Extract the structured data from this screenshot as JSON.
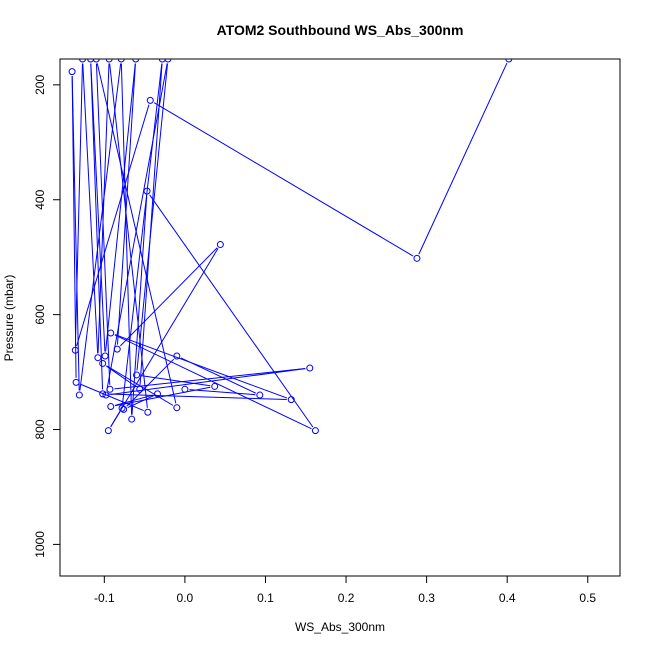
{
  "chart_data": {
    "type": "line",
    "title": "ATOM2 Southbound WS_Abs_300nm",
    "xlabel": "WS_Abs_300nm",
    "ylabel": "Pressure (mbar)",
    "xlim": [
      -0.155,
      0.54
    ],
    "ylim": [
      1055,
      155
    ],
    "y_reversed": true,
    "xticks": [
      "-0.1",
      "0.0",
      "0.1",
      "0.2",
      "0.3",
      "0.4",
      "0.5"
    ],
    "yticks": [
      "200",
      "400",
      "600",
      "800",
      "1000"
    ],
    "grid": false,
    "legend": "none",
    "series": [
      {
        "color": "#0000ff",
        "marker": "open-circle",
        "points": [
          {
            "x": 0.402,
            "y": 155
          },
          {
            "x": 0.288,
            "y": 502
          },
          {
            "x": -0.043,
            "y": 227
          },
          {
            "x": -0.136,
            "y": 662
          },
          {
            "x": -0.127,
            "y": 155
          },
          {
            "x": -0.108,
            "y": 675
          },
          {
            "x": -0.094,
            "y": 155
          },
          {
            "x": -0.046,
            "y": 770
          },
          {
            "x": -0.135,
            "y": 718
          },
          {
            "x": -0.14,
            "y": 177
          },
          {
            "x": -0.131,
            "y": 740
          },
          {
            "x": -0.079,
            "y": 155
          },
          {
            "x": -0.066,
            "y": 782
          },
          {
            "x": -0.047,
            "y": 385
          },
          {
            "x": 0.162,
            "y": 802
          },
          {
            "x": -0.092,
            "y": 632
          },
          {
            "x": 0.132,
            "y": 748
          },
          {
            "x": -0.102,
            "y": 738
          },
          {
            "x": -0.117,
            "y": 155
          },
          {
            "x": -0.099,
            "y": 672
          },
          {
            "x": -0.061,
            "y": 155
          },
          {
            "x": -0.084,
            "y": 660
          },
          {
            "x": 0.044,
            "y": 478
          },
          {
            "x": -0.095,
            "y": 802
          },
          {
            "x": -0.078,
            "y": 763
          },
          {
            "x": -0.028,
            "y": 155
          },
          {
            "x": -0.056,
            "y": 730
          },
          {
            "x": -0.102,
            "y": 685
          },
          {
            "x": -0.01,
            "y": 762
          },
          {
            "x": -0.11,
            "y": 155
          },
          {
            "x": -0.093,
            "y": 730
          },
          {
            "x": 0.155,
            "y": 693
          },
          {
            "x": -0.098,
            "y": 740
          },
          {
            "x": -0.021,
            "y": 155
          },
          {
            "x": -0.06,
            "y": 705
          },
          {
            "x": 0.037,
            "y": 725
          },
          {
            "x": -0.092,
            "y": 760
          },
          {
            "x": -0.034,
            "y": 738
          },
          {
            "x": -0.076,
            "y": 765
          },
          {
            "x": -0.01,
            "y": 672
          },
          {
            "x": 0.093,
            "y": 740
          },
          {
            "x": -0.0,
            "y": 730
          }
        ]
      }
    ]
  }
}
